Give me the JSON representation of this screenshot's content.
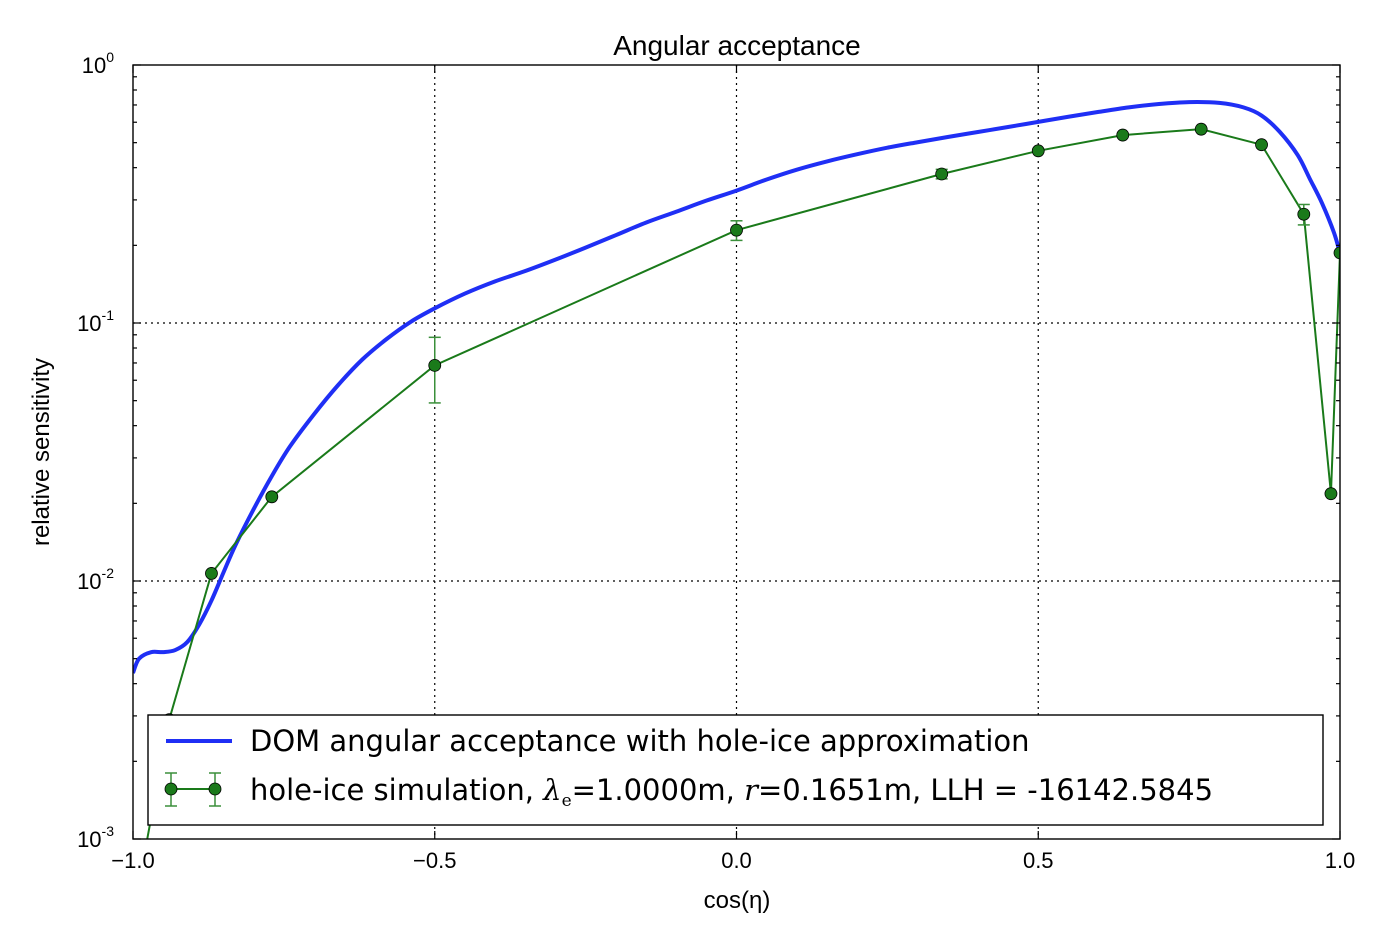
{
  "chart_data": {
    "type": "line",
    "title": "Angular acceptance",
    "xlabel": "cos(η)",
    "ylabel": "relative sensitivity",
    "xlim": [
      -1.0,
      1.0
    ],
    "ylim": [
      0.001,
      1.0
    ],
    "yscale": "log",
    "grid": true,
    "legend_placement": "bottom",
    "x_ticks": [
      {
        "value": -1.0,
        "label": "−1.0"
      },
      {
        "value": -0.5,
        "label": "−0.5"
      },
      {
        "value": 0.0,
        "label": "0.0"
      },
      {
        "value": 0.5,
        "label": "0.5"
      },
      {
        "value": 1.0,
        "label": "1.0"
      }
    ],
    "y_ticks": [
      {
        "value": 0.001,
        "base": "10",
        "exp": "-3"
      },
      {
        "value": 0.01,
        "base": "10",
        "exp": "-2"
      },
      {
        "value": 0.1,
        "base": "10",
        "exp": "-1"
      },
      {
        "value": 1.0,
        "base": "10",
        "exp": "0"
      }
    ],
    "series": [
      {
        "name": "DOM angular acceptance with hole-ice approximation",
        "kind": "line",
        "color": "#1f2ff5",
        "x": [
          -1.0,
          -0.99,
          -0.97,
          -0.95,
          -0.93,
          -0.91,
          -0.89,
          -0.87,
          -0.85,
          -0.83,
          -0.8,
          -0.77,
          -0.74,
          -0.7,
          -0.66,
          -0.62,
          -0.58,
          -0.54,
          -0.5,
          -0.45,
          -0.4,
          -0.35,
          -0.3,
          -0.25,
          -0.2,
          -0.15,
          -0.1,
          -0.05,
          0.0,
          0.05,
          0.1,
          0.15,
          0.2,
          0.25,
          0.3,
          0.35,
          0.4,
          0.45,
          0.5,
          0.55,
          0.6,
          0.65,
          0.7,
          0.75,
          0.8,
          0.84,
          0.87,
          0.9,
          0.93,
          0.95,
          0.97,
          0.99,
          1.0
        ],
        "y": [
          0.0044,
          0.005,
          0.0053,
          0.0053,
          0.0054,
          0.0058,
          0.0068,
          0.0084,
          0.0108,
          0.0138,
          0.019,
          0.0255,
          0.0332,
          0.0443,
          0.0575,
          0.0722,
          0.0866,
          0.101,
          0.114,
          0.13,
          0.145,
          0.159,
          0.176,
          0.196,
          0.219,
          0.245,
          0.27,
          0.298,
          0.326,
          0.36,
          0.393,
          0.423,
          0.451,
          0.478,
          0.502,
          0.526,
          0.55,
          0.575,
          0.602,
          0.63,
          0.658,
          0.685,
          0.706,
          0.718,
          0.713,
          0.685,
          0.637,
          0.551,
          0.447,
          0.362,
          0.292,
          0.224,
          0.186
        ]
      },
      {
        "name": "hole-ice simulation, λe=1.0000m, r=0.1651m, LLH = -16142.5845",
        "kind": "errorbar",
        "color": "#1a7a1a",
        "x": [
          -0.98,
          -0.94,
          -0.87,
          -0.77,
          -0.5,
          0.0,
          0.34,
          0.5,
          0.64,
          0.77,
          0.87,
          0.94,
          0.985,
          1.0
        ],
        "y": [
          0.0009,
          0.0029,
          0.0107,
          0.0212,
          0.0685,
          0.229,
          0.378,
          0.465,
          0.535,
          0.564,
          0.491,
          0.264,
          0.0218,
          0.187
        ],
        "yerr_low": [
          0.0,
          0.0,
          0.0,
          0.0,
          0.0195,
          0.02,
          0.016,
          0.0,
          0.0,
          0.0,
          0.0,
          0.024,
          0.0,
          0.0
        ],
        "yerr_high": [
          0.0,
          0.0,
          0.0,
          0.0,
          0.0195,
          0.02,
          0.016,
          0.0,
          0.0,
          0.0,
          0.0,
          0.024,
          0.0,
          0.0
        ]
      }
    ],
    "legend": {
      "line_label": "DOM angular acceptance with hole-ice approximation",
      "scatter_prefix": "hole-ice simulation, ",
      "lambda_symbol": "λ",
      "lambda_sub": "e",
      "lambda_value": "=1.0000m, ",
      "r_symbol": "r",
      "r_value": "=0.1651m, LLH = -16142.5845"
    }
  }
}
